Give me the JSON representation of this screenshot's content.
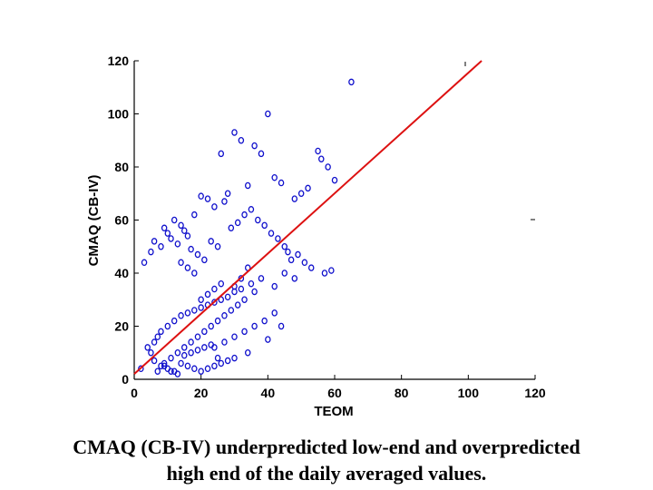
{
  "chart_data": {
    "type": "scatter",
    "xlabel": "TEOM",
    "ylabel": "CMAQ (CB-IV)",
    "xlim": [
      0,
      120
    ],
    "ylim": [
      0,
      120
    ],
    "x_ticks": [
      "0",
      "20",
      "40",
      "60",
      "80",
      "100",
      "120"
    ],
    "y_ticks": [
      "0",
      "20",
      "40",
      "60",
      "80",
      "100",
      "120"
    ],
    "grid": false,
    "marker_color": "#1010cc",
    "line_color": "#dd1111",
    "fit_line": {
      "x": [
        0,
        104
      ],
      "y": [
        2,
        120
      ]
    },
    "series": [
      {
        "x": [
          65,
          40,
          30,
          32,
          36,
          38,
          26,
          55,
          56,
          58,
          60,
          52,
          50,
          48,
          44,
          42,
          34,
          28,
          27,
          24,
          22,
          20,
          18,
          12,
          14,
          10,
          9,
          6,
          5,
          3,
          8,
          11,
          13,
          15,
          16,
          17,
          19,
          21,
          23,
          25,
          29,
          31,
          33,
          35,
          37,
          39,
          41,
          43,
          45,
          46,
          47,
          49,
          51,
          53,
          57,
          59,
          38,
          35,
          32,
          30,
          28,
          26,
          24,
          22,
          20,
          18,
          16,
          14,
          12,
          10,
          8,
          7,
          6,
          4,
          2,
          45,
          48,
          42,
          36,
          33,
          31,
          29,
          27,
          25,
          23,
          21,
          19,
          17,
          15,
          13,
          11,
          9,
          22,
          24,
          26,
          28,
          30,
          34,
          40,
          44,
          20,
          18,
          16,
          14,
          12,
          10,
          8,
          6,
          24,
          27,
          30,
          33,
          36,
          39,
          42,
          15,
          17,
          19,
          21,
          23,
          25,
          11,
          13,
          9,
          7,
          5,
          30,
          32,
          34,
          20,
          22,
          24,
          26,
          18,
          16,
          14
        ],
        "y": [
          112,
          100,
          93,
          90,
          88,
          85,
          85,
          86,
          83,
          80,
          75,
          72,
          70,
          68,
          74,
          76,
          73,
          70,
          67,
          65,
          68,
          69,
          62,
          60,
          58,
          55,
          57,
          52,
          48,
          44,
          50,
          53,
          51,
          56,
          54,
          49,
          47,
          45,
          52,
          50,
          57,
          59,
          62,
          64,
          60,
          58,
          55,
          53,
          50,
          48,
          45,
          47,
          44,
          42,
          40,
          41,
          38,
          36,
          34,
          33,
          31,
          30,
          29,
          28,
          27,
          26,
          25,
          24,
          22,
          20,
          18,
          16,
          14,
          12,
          4,
          40,
          38,
          35,
          33,
          30,
          28,
          26,
          24,
          22,
          20,
          18,
          16,
          14,
          12,
          10,
          8,
          6,
          4,
          5,
          6,
          7,
          8,
          10,
          15,
          20,
          3,
          4,
          5,
          6,
          3,
          4,
          5,
          7,
          12,
          14,
          16,
          18,
          20,
          22,
          25,
          9,
          10,
          11,
          12,
          13,
          8,
          3,
          2,
          5,
          3,
          10,
          35,
          38,
          42,
          30,
          32,
          34,
          36,
          40,
          42,
          44
        ]
      }
    ]
  },
  "caption": {
    "line1": "CMAQ (CB-IV) underpredicted low-end and overpredicted",
    "line2": "high end of the daily averaged values."
  }
}
